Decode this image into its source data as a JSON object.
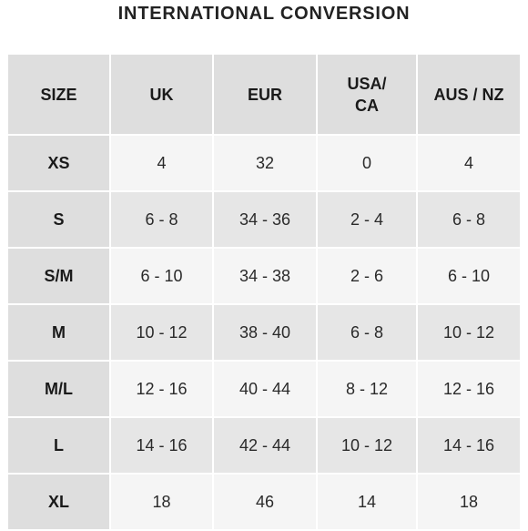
{
  "title": "INTERNATIONAL CONVERSION",
  "headers": {
    "size": "SIZE",
    "uk": "UK",
    "eur": "EUR",
    "usa_ca_line1": "USA/",
    "usa_ca_line2": "CA",
    "aus_nz": "AUS / NZ"
  },
  "rows": [
    {
      "size": "XS",
      "uk": "4",
      "eur": "32",
      "usa": "0",
      "aus": "4"
    },
    {
      "size": "S",
      "uk": "6 - 8",
      "eur": "34 - 36",
      "usa": "2 - 4",
      "aus": "6 - 8"
    },
    {
      "size": "S/M",
      "uk": "6 - 10",
      "eur": "34 - 38",
      "usa": "2 - 6",
      "aus": "6 - 10"
    },
    {
      "size": "M",
      "uk": "10 - 12",
      "eur": "38 - 40",
      "usa": "6 - 8",
      "aus": "10 - 12"
    },
    {
      "size": "M/L",
      "uk": "12 - 16",
      "eur": "40 - 44",
      "usa": "8 - 12",
      "aus": "12 - 16"
    },
    {
      "size": "L",
      "uk": "14 - 16",
      "eur": "42 - 44",
      "usa": "10 - 12",
      "aus": "14 - 16"
    },
    {
      "size": "XL",
      "uk": "18",
      "eur": "46",
      "usa": "14",
      "aus": "18"
    }
  ],
  "colors": {
    "header_bg": "#dedede",
    "row_light": "#f5f5f5",
    "row_dark": "#e6e6e6",
    "text": "#1a1a1a"
  }
}
